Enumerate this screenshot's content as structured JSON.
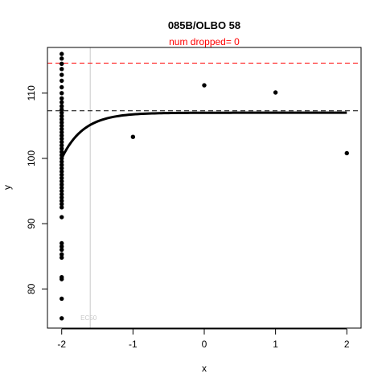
{
  "chart_data": {
    "type": "scatter",
    "title": "085B/OLBO 58",
    "subtitle": "num dropped= 0",
    "xlabel": "x",
    "ylabel": "y",
    "xlim": [
      -2.2,
      2.2
    ],
    "ylim": [
      74,
      117
    ],
    "x_ticks": [
      -2,
      -1,
      0,
      1,
      2
    ],
    "y_ticks": [
      80,
      90,
      100,
      110
    ],
    "grid": false,
    "colors": {
      "points": "#000000",
      "fit": "#000000",
      "subtitle": "#ff0000",
      "upper_line": "#ff0000",
      "plateau_line": "#000000",
      "ec_line": "#c8c8c8",
      "ec_label": "#c8c8c8"
    },
    "points": [
      [
        -2,
        116.0
      ],
      [
        -2,
        115.3
      ],
      [
        -2,
        114.5
      ],
      [
        -2,
        113.7
      ],
      [
        -2,
        112.8
      ],
      [
        -2,
        111.9
      ],
      [
        -2,
        110.9
      ],
      [
        -2,
        110.0
      ],
      [
        -2,
        109.2
      ],
      [
        -2,
        108.6
      ],
      [
        -2,
        108.0
      ],
      [
        -2,
        107.5
      ],
      [
        -2,
        107.0
      ],
      [
        -2,
        106.5
      ],
      [
        -2,
        106.0
      ],
      [
        -2,
        105.5
      ],
      [
        -2,
        105.0
      ],
      [
        -2,
        104.5
      ],
      [
        -2,
        104.0
      ],
      [
        -2,
        103.5
      ],
      [
        -2,
        103.0
      ],
      [
        -2,
        102.5
      ],
      [
        -2,
        102.0
      ],
      [
        -2,
        101.5
      ],
      [
        -2,
        101.0
      ],
      [
        -2,
        100.5
      ],
      [
        -2,
        100.0
      ],
      [
        -2,
        99.5
      ],
      [
        -2,
        99.0
      ],
      [
        -2,
        98.5
      ],
      [
        -2,
        98.0
      ],
      [
        -2,
        97.5
      ],
      [
        -2,
        97.0
      ],
      [
        -2,
        96.5
      ],
      [
        -2,
        96.0
      ],
      [
        -2,
        95.5
      ],
      [
        -2,
        95.0
      ],
      [
        -2,
        94.5
      ],
      [
        -2,
        94.0
      ],
      [
        -2,
        93.5
      ],
      [
        -2,
        93.0
      ],
      [
        -2,
        92.5
      ],
      [
        -2,
        91.0
      ],
      [
        -2,
        87.0
      ],
      [
        -2,
        86.5
      ],
      [
        -2,
        86.0
      ],
      [
        -2,
        85.3
      ],
      [
        -2,
        84.8
      ],
      [
        -2,
        81.8
      ],
      [
        -2,
        81.5
      ],
      [
        -2,
        78.5
      ],
      [
        -2,
        75.5
      ],
      [
        -1,
        103.3
      ],
      [
        0,
        111.2
      ],
      [
        1,
        110.1
      ],
      [
        2,
        100.8
      ]
    ],
    "fit_curve": {
      "type": "exponential-rise",
      "start_x": -2.0,
      "start_y": 100.0,
      "plateau": 107.0,
      "rate": 3.3,
      "end_x": 2.0
    },
    "reference_lines": [
      {
        "name": "upper",
        "y": 114.6,
        "style": "dashed"
      },
      {
        "name": "plateau",
        "y": 107.3,
        "style": "dashed"
      }
    ],
    "ec_line": {
      "label": "EC50",
      "x": -1.6
    }
  }
}
